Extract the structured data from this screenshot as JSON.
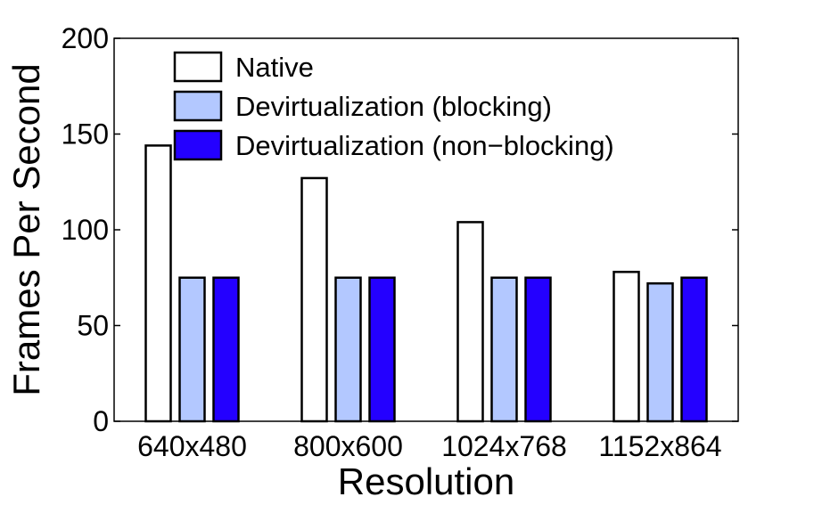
{
  "chart_data": {
    "type": "bar",
    "title": "",
    "xlabel": "Resolution",
    "ylabel": "Frames Per Second",
    "ylim": [
      0,
      200
    ],
    "yticks": [
      "0",
      "50",
      "100",
      "150",
      "200"
    ],
    "categories": [
      "640x480",
      "800x600",
      "1024x768",
      "1152x864"
    ],
    "series": [
      {
        "name": "Native",
        "color": "#ffffff",
        "values": [
          144,
          127,
          104,
          78
        ]
      },
      {
        "name": "Devirtualization (blocking)",
        "color": "#b3c8ff",
        "values": [
          75,
          75,
          75,
          72
        ]
      },
      {
        "name": "Devirtualization (non−blocking)",
        "color": "#2400ff",
        "values": [
          75,
          75,
          75,
          75
        ]
      }
    ],
    "grid": false,
    "legend": "top-left"
  }
}
